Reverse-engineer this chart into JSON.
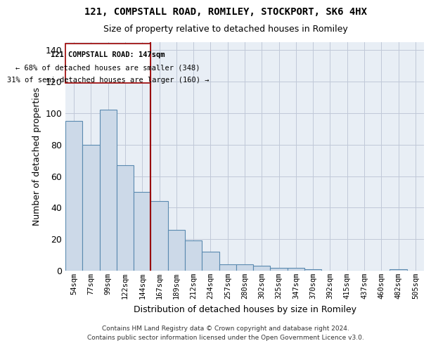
{
  "title1": "121, COMPSTALL ROAD, ROMILEY, STOCKPORT, SK6 4HX",
  "title2": "Size of property relative to detached houses in Romiley",
  "xlabel": "Distribution of detached houses by size in Romiley",
  "ylabel": "Number of detached properties",
  "bins": [
    "54sqm",
    "77sqm",
    "99sqm",
    "122sqm",
    "144sqm",
    "167sqm",
    "189sqm",
    "212sqm",
    "234sqm",
    "257sqm",
    "280sqm",
    "302sqm",
    "325sqm",
    "347sqm",
    "370sqm",
    "392sqm",
    "415sqm",
    "437sqm",
    "460sqm",
    "482sqm",
    "505sqm"
  ],
  "values": [
    95,
    80,
    102,
    67,
    50,
    44,
    26,
    19,
    12,
    4,
    4,
    3,
    2,
    2,
    1,
    0,
    0,
    0,
    0,
    1,
    0
  ],
  "property_bin_index": 4,
  "annotation_line1": "121 COMPSTALL ROAD: 147sqm",
  "annotation_line2": "← 68% of detached houses are smaller (348)",
  "annotation_line3": "31% of semi-detached houses are larger (160) →",
  "bar_color": "#ccd9e8",
  "bar_edge_color": "#5a8ab0",
  "redline_color": "#990000",
  "background_color": "#e8eef5",
  "footer1": "Contains HM Land Registry data © Crown copyright and database right 2024.",
  "footer2": "Contains public sector information licensed under the Open Government Licence v3.0.",
  "ylim": [
    0,
    145
  ],
  "yticks": [
    0,
    20,
    40,
    60,
    80,
    100,
    120,
    140
  ],
  "grid_color": "#c0c8d8"
}
